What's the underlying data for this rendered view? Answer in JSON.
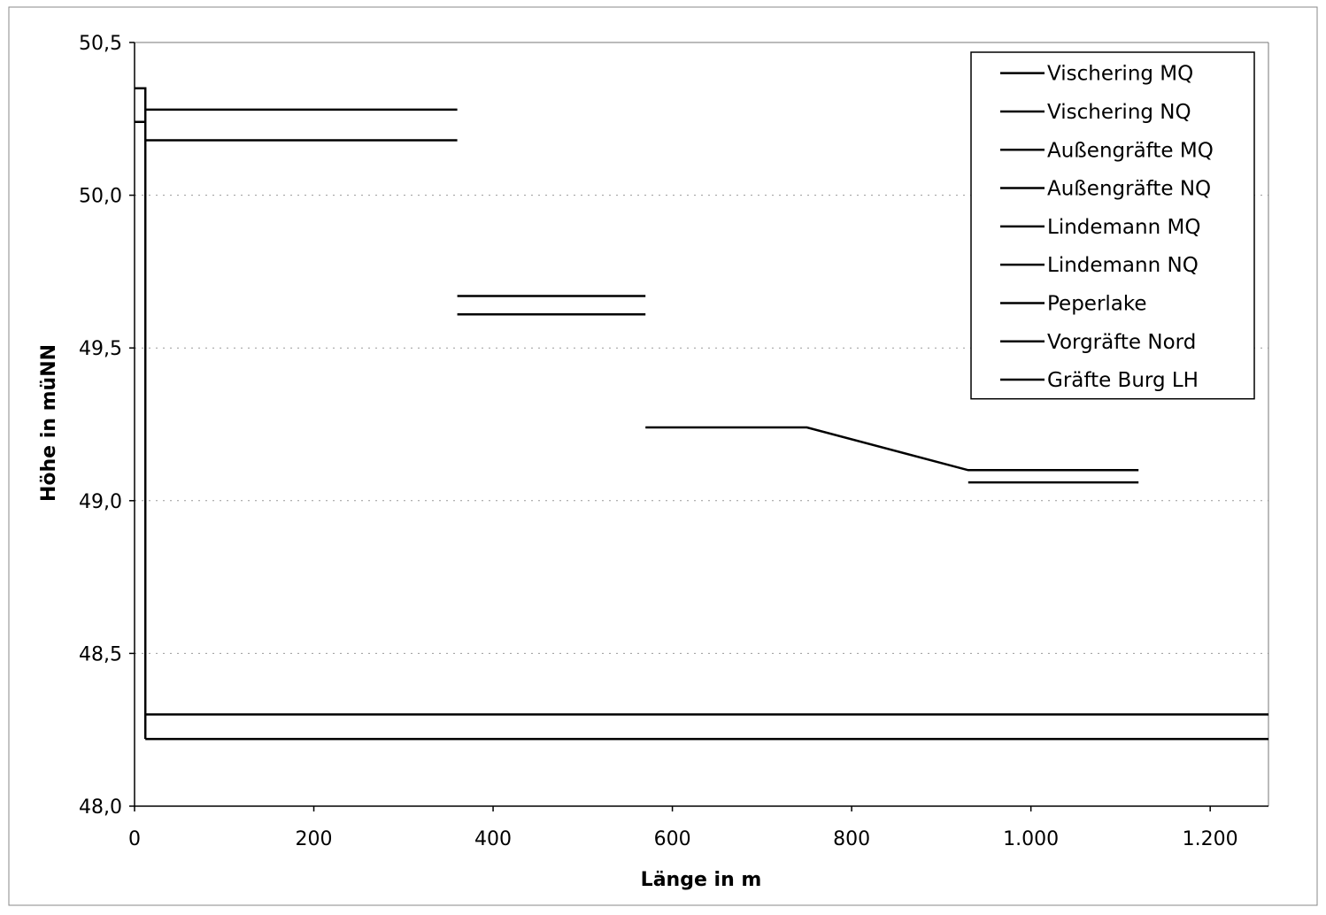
{
  "chart_data": {
    "type": "line",
    "xlabel": "Länge in m",
    "ylabel": "Höhe in müNN",
    "xlim": [
      0,
      1265
    ],
    "ylim": [
      48.0,
      50.5
    ],
    "x_ticks": [
      0,
      200,
      400,
      600,
      800,
      1000,
      1200
    ],
    "x_tick_labels": [
      "0",
      "200",
      "400",
      "600",
      "800",
      "1.000",
      "1.200"
    ],
    "y_ticks": [
      48.0,
      48.5,
      49.0,
      49.5,
      50.0,
      50.5
    ],
    "y_tick_labels": [
      "48,0",
      "48,5",
      "49,0",
      "49,5",
      "50,0",
      "50,5"
    ],
    "grid": "horizontal-dotted",
    "legend_position": "top-right",
    "series": [
      {
        "name": "Vischering MQ",
        "points": [
          [
            12,
            50.28
          ],
          [
            360,
            50.28
          ]
        ]
      },
      {
        "name": "Vischering NQ",
        "points": [
          [
            12,
            50.18
          ],
          [
            360,
            50.18
          ]
        ]
      },
      {
        "name": "Außengräfte MQ",
        "points": [
          [
            360,
            49.67
          ],
          [
            570,
            49.67
          ]
        ]
      },
      {
        "name": "Außengräfte NQ",
        "points": [
          [
            360,
            49.61
          ],
          [
            570,
            49.61
          ]
        ]
      },
      {
        "name": "Lindemann MQ",
        "points": [
          [
            570,
            49.24
          ],
          [
            750,
            49.24
          ],
          [
            930,
            49.1
          ],
          [
            1120,
            49.1
          ]
        ]
      },
      {
        "name": "Lindemann NQ",
        "points": [
          [
            930,
            49.06
          ],
          [
            1120,
            49.06
          ]
        ]
      },
      {
        "name": "Peperlake",
        "points": [
          [
            12,
            48.3
          ],
          [
            1265,
            48.3
          ]
        ]
      },
      {
        "name": "Vorgräfte Nord",
        "points": [
          [
            12,
            48.22
          ],
          [
            1265,
            48.22
          ]
        ]
      },
      {
        "name": "Gräfte Burg LH",
        "points": [
          [
            0,
            50.35
          ],
          [
            12,
            50.35
          ],
          [
            12,
            50.24
          ],
          [
            0,
            50.24
          ],
          [
            12,
            50.24
          ],
          [
            12,
            48.22
          ]
        ]
      }
    ]
  }
}
